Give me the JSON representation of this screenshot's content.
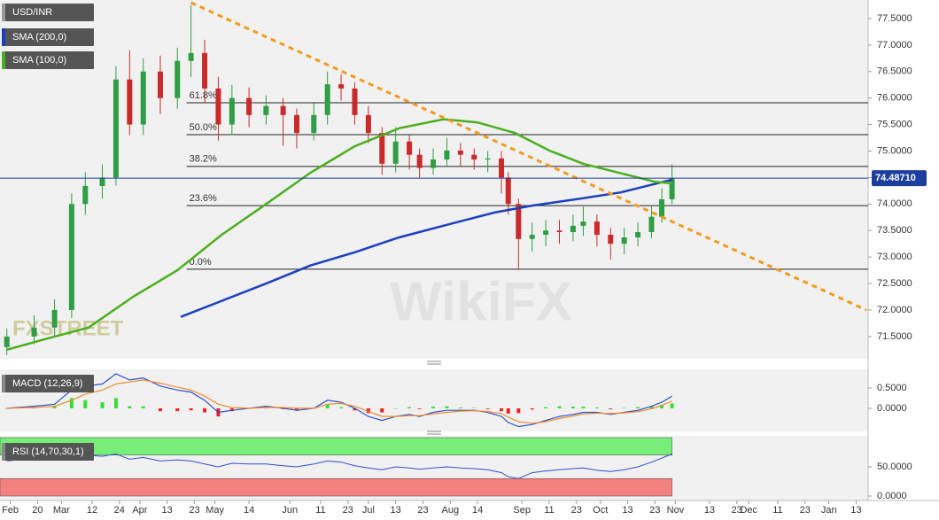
{
  "chart_data": [
    {
      "type": "candlestick",
      "title": "USD/INR",
      "title_color": "#9a9a9a",
      "up_color": "#2f9e44",
      "down_color": "#c92a2a",
      "xlim": [
        -2,
        252.5
      ],
      "ylim": [
        71.08,
        77.85
      ],
      "xticks": [
        {
          "value": 1,
          "label": "Feb"
        },
        {
          "value": 9,
          "label": "20"
        },
        {
          "value": 16,
          "label": "Mar"
        },
        {
          "value": 25,
          "label": "12"
        },
        {
          "value": 33,
          "label": "24"
        },
        {
          "value": 39,
          "label": "Apr"
        },
        {
          "value": 47,
          "label": "13"
        },
        {
          "value": 55,
          "label": "23"
        },
        {
          "value": 61,
          "label": "May"
        },
        {
          "value": 71,
          "label": "14"
        },
        {
          "value": 83,
          "label": "Jun"
        },
        {
          "value": 92,
          "label": "11"
        },
        {
          "value": 100,
          "label": "23"
        },
        {
          "value": 106,
          "label": "Jul"
        },
        {
          "value": 114,
          "label": "13"
        },
        {
          "value": 122,
          "label": "23"
        },
        {
          "value": 130,
          "label": "Aug"
        },
        {
          "value": 138,
          "label": "14"
        },
        {
          "value": 151,
          "label": "Sep"
        },
        {
          "value": 159,
          "label": "11"
        },
        {
          "value": 167,
          "label": "23"
        },
        {
          "value": 174,
          "label": "Oct"
        },
        {
          "value": 182,
          "label": "13"
        },
        {
          "value": 190,
          "label": "23"
        },
        {
          "value": 196,
          "label": "Nov"
        },
        {
          "value": 206,
          "label": "13"
        },
        {
          "value": 214,
          "label": "23"
        },
        {
          "value": 217.5,
          "label": "Dec"
        },
        {
          "value": 226,
          "label": "11"
        },
        {
          "value": 234,
          "label": "23"
        },
        {
          "value": 241,
          "label": "Jan"
        },
        {
          "value": 249,
          "label": "13"
        }
      ],
      "yticks": [
        {
          "value": 71.5,
          "label": "71.5000"
        },
        {
          "value": 72.0,
          "label": "72.0000"
        },
        {
          "value": 72.5,
          "label": "72.5000"
        },
        {
          "value": 73.0,
          "label": "73.0000"
        },
        {
          "value": 73.5,
          "label": "73.5000"
        },
        {
          "value": 74.0,
          "label": "74.0000"
        },
        {
          "value": 74.5,
          "label": "74.5000"
        },
        {
          "value": 75.0,
          "label": "75.0000"
        },
        {
          "value": 75.5,
          "label": "75.5000"
        },
        {
          "value": 76.0,
          "label": "76.0000"
        },
        {
          "value": 76.5,
          "label": "76.5000"
        },
        {
          "value": 77.0,
          "label": "77.0000"
        },
        {
          "value": 77.5,
          "label": "77.5000"
        }
      ],
      "candles": [
        {
          "x": 0,
          "open": 71.3,
          "high": 71.65,
          "low": 71.15,
          "close": 71.5
        },
        {
          "x": 8,
          "open": 71.5,
          "high": 71.9,
          "low": 71.35,
          "close": 71.67
        },
        {
          "x": 14,
          "open": 71.67,
          "high": 72.2,
          "low": 71.5,
          "close": 72.0
        },
        {
          "x": 19,
          "open": 72.0,
          "high": 74.2,
          "low": 71.85,
          "close": 74.0
        },
        {
          "x": 23,
          "open": 74.0,
          "high": 74.6,
          "low": 73.8,
          "close": 74.34
        },
        {
          "x": 28,
          "open": 74.34,
          "high": 74.75,
          "low": 74.1,
          "close": 74.5
        },
        {
          "x": 32,
          "open": 74.5,
          "high": 76.6,
          "low": 74.35,
          "close": 76.35
        },
        {
          "x": 36,
          "open": 76.35,
          "high": 76.9,
          "low": 75.3,
          "close": 75.5
        },
        {
          "x": 40,
          "open": 75.5,
          "high": 76.75,
          "low": 75.3,
          "close": 76.5
        },
        {
          "x": 45,
          "open": 76.5,
          "high": 76.8,
          "low": 75.7,
          "close": 76.0
        },
        {
          "x": 50,
          "open": 76.0,
          "high": 76.95,
          "low": 75.8,
          "close": 76.7
        },
        {
          "x": 54,
          "open": 76.7,
          "high": 77.75,
          "low": 76.4,
          "close": 76.85
        },
        {
          "x": 58,
          "open": 76.85,
          "high": 77.1,
          "low": 75.9,
          "close": 76.18
        },
        {
          "x": 62,
          "open": 76.18,
          "high": 76.4,
          "low": 75.2,
          "close": 75.5
        },
        {
          "x": 66,
          "open": 75.5,
          "high": 76.25,
          "low": 75.3,
          "close": 76.0
        },
        {
          "x": 71,
          "open": 76.0,
          "high": 76.2,
          "low": 75.45,
          "close": 75.68
        },
        {
          "x": 76,
          "open": 75.68,
          "high": 76.05,
          "low": 75.5,
          "close": 75.85
        },
        {
          "x": 81,
          "open": 75.85,
          "high": 76.0,
          "low": 75.1,
          "close": 75.68
        },
        {
          "x": 85,
          "open": 75.68,
          "high": 75.8,
          "low": 75.05,
          "close": 75.34
        },
        {
          "x": 90,
          "open": 75.34,
          "high": 75.9,
          "low": 75.2,
          "close": 75.68
        },
        {
          "x": 94,
          "open": 75.68,
          "high": 76.5,
          "low": 75.5,
          "close": 76.26
        },
        {
          "x": 98,
          "open": 76.26,
          "high": 76.45,
          "low": 75.95,
          "close": 76.18
        },
        {
          "x": 102,
          "open": 76.18,
          "high": 76.3,
          "low": 75.5,
          "close": 75.68
        },
        {
          "x": 106,
          "open": 75.68,
          "high": 75.85,
          "low": 75.15,
          "close": 75.34
        },
        {
          "x": 110,
          "open": 75.34,
          "high": 75.45,
          "low": 74.55,
          "close": 74.76
        },
        {
          "x": 114,
          "open": 74.76,
          "high": 75.45,
          "low": 74.6,
          "close": 75.18
        },
        {
          "x": 118,
          "open": 75.18,
          "high": 75.3,
          "low": 74.65,
          "close": 74.93
        },
        {
          "x": 121,
          "open": 74.93,
          "high": 75.05,
          "low": 74.5,
          "close": 74.68
        },
        {
          "x": 125,
          "open": 74.68,
          "high": 75.05,
          "low": 74.55,
          "close": 74.84
        },
        {
          "x": 129,
          "open": 74.84,
          "high": 75.25,
          "low": 74.7,
          "close": 75.01
        },
        {
          "x": 133,
          "open": 75.01,
          "high": 75.15,
          "low": 74.7,
          "close": 74.93
        },
        {
          "x": 137,
          "open": 74.93,
          "high": 75.05,
          "low": 74.65,
          "close": 74.84
        },
        {
          "x": 141,
          "open": 74.84,
          "high": 75.0,
          "low": 74.6,
          "close": 74.86
        },
        {
          "x": 145,
          "open": 74.86,
          "high": 75.0,
          "low": 74.2,
          "close": 74.5
        },
        {
          "x": 147,
          "open": 74.5,
          "high": 74.6,
          "low": 73.8,
          "close": 74.0
        },
        {
          "x": 150,
          "open": 74.0,
          "high": 74.1,
          "low": 72.77,
          "close": 73.34
        },
        {
          "x": 154,
          "open": 73.34,
          "high": 73.65,
          "low": 73.1,
          "close": 73.42
        },
        {
          "x": 158,
          "open": 73.42,
          "high": 73.7,
          "low": 73.2,
          "close": 73.5
        },
        {
          "x": 162,
          "open": 73.5,
          "high": 73.7,
          "low": 73.25,
          "close": 73.47
        },
        {
          "x": 166,
          "open": 73.47,
          "high": 73.8,
          "low": 73.3,
          "close": 73.59
        },
        {
          "x": 169,
          "open": 73.59,
          "high": 73.95,
          "low": 73.4,
          "close": 73.67
        },
        {
          "x": 173,
          "open": 73.67,
          "high": 73.8,
          "low": 73.2,
          "close": 73.42
        },
        {
          "x": 177,
          "open": 73.42,
          "high": 73.55,
          "low": 72.95,
          "close": 73.25
        },
        {
          "x": 181,
          "open": 73.25,
          "high": 73.55,
          "low": 73.05,
          "close": 73.37
        },
        {
          "x": 185,
          "open": 73.37,
          "high": 73.65,
          "low": 73.2,
          "close": 73.47
        },
        {
          "x": 189,
          "open": 73.47,
          "high": 73.95,
          "low": 73.35,
          "close": 73.76
        },
        {
          "x": 192,
          "open": 73.76,
          "high": 74.3,
          "low": 73.65,
          "close": 74.09
        },
        {
          "x": 195,
          "open": 74.09,
          "high": 74.75,
          "low": 74.0,
          "close": 74.49
        }
      ],
      "series": [
        {
          "name": "SMA (200,0)",
          "color": "#1c3fbf",
          "x": [
            51,
            76,
            89,
            102,
            115,
            128,
            143,
            154,
            167,
            180,
            195
          ],
          "values": [
            71.87,
            72.5,
            72.84,
            73.09,
            73.37,
            73.59,
            73.84,
            73.97,
            74.09,
            74.22,
            74.46
          ]
        },
        {
          "name": "SMA (100,0)",
          "color": "#4caf1e",
          "x": [
            0,
            14,
            24,
            37,
            50,
            63,
            76,
            89,
            102,
            115,
            128,
            138,
            149,
            159,
            169,
            180,
            190,
            195
          ],
          "values": [
            71.25,
            71.5,
            71.67,
            72.25,
            72.75,
            73.42,
            74.0,
            74.59,
            75.09,
            75.43,
            75.6,
            75.54,
            75.34,
            75.01,
            74.76,
            74.58,
            74.42,
            74.39
          ]
        }
      ],
      "trendline": {
        "color": "#f39a1e",
        "x": [
          54,
          252
        ],
        "values": [
          77.8,
          72.0
        ]
      },
      "fib_levels": [
        {
          "label": "61.8%",
          "value": 75.91
        },
        {
          "label": "50.0%",
          "value": 75.31
        },
        {
          "label": "38.2%",
          "value": 74.71
        },
        {
          "label": "23.6%",
          "value": 73.97
        },
        {
          "label": "0.0%",
          "value": 72.77
        }
      ],
      "last_price": {
        "value": 74.4871,
        "label": "74.48710",
        "color": "#1c3f9f"
      },
      "watermarks": [
        "WikiFX",
        "FXSTREET"
      ]
    },
    {
      "type": "macd",
      "title": "MACD (12,26,9)",
      "x": [
        0,
        8,
        14,
        19,
        23,
        28,
        32,
        36,
        40,
        45,
        50,
        54,
        58,
        62,
        66,
        71,
        76,
        81,
        85,
        90,
        94,
        98,
        102,
        106,
        110,
        114,
        118,
        121,
        125,
        129,
        133,
        137,
        141,
        145,
        147,
        150,
        154,
        158,
        162,
        166,
        169,
        173,
        177,
        181,
        185,
        189,
        192,
        195
      ],
      "ylim": [
        -0.57,
        0.96
      ],
      "yticks": [
        {
          "value": 0.5,
          "label": "0.5000"
        },
        {
          "value": 0,
          "label": "0.0000"
        }
      ],
      "macd": {
        "color": "#2f4fd0",
        "values": [
          0.0,
          0.05,
          0.1,
          0.45,
          0.55,
          0.6,
          0.85,
          0.7,
          0.75,
          0.55,
          0.45,
          0.4,
          0.2,
          -0.1,
          -0.05,
          0.0,
          0.05,
          0.0,
          -0.05,
          0.0,
          0.2,
          0.15,
          0.0,
          -0.2,
          -0.3,
          -0.2,
          -0.15,
          -0.2,
          -0.1,
          -0.05,
          -0.05,
          -0.05,
          -0.1,
          -0.2,
          -0.35,
          -0.45,
          -0.4,
          -0.3,
          -0.2,
          -0.15,
          -0.1,
          -0.1,
          -0.15,
          -0.1,
          -0.05,
          0.05,
          0.15,
          0.3
        ]
      },
      "signal": {
        "color": "#f08a2a",
        "values": [
          0.0,
          0.02,
          0.05,
          0.2,
          0.35,
          0.45,
          0.6,
          0.65,
          0.7,
          0.62,
          0.52,
          0.45,
          0.3,
          0.1,
          0.02,
          0.0,
          0.02,
          0.02,
          0.0,
          0.0,
          0.1,
          0.12,
          0.05,
          -0.08,
          -0.2,
          -0.2,
          -0.18,
          -0.18,
          -0.14,
          -0.1,
          -0.07,
          -0.06,
          -0.08,
          -0.13,
          -0.22,
          -0.33,
          -0.37,
          -0.33,
          -0.25,
          -0.19,
          -0.14,
          -0.12,
          -0.13,
          -0.11,
          -0.08,
          -0.01,
          0.07,
          0.18
        ]
      },
      "histogram": {
        "up_color": "#33dd33",
        "down_color": "#ee2222",
        "values": [
          0,
          0.03,
          0.05,
          0.25,
          0.2,
          0.15,
          0.25,
          0.05,
          0.05,
          -0.07,
          -0.07,
          -0.05,
          -0.1,
          -0.2,
          -0.07,
          0,
          0.03,
          -0.02,
          -0.05,
          0,
          0.1,
          0.03,
          -0.05,
          -0.12,
          -0.1,
          0,
          0.03,
          -0.02,
          0.04,
          0.05,
          0.02,
          0.01,
          -0.02,
          -0.07,
          -0.13,
          -0.12,
          -0.03,
          0.03,
          0.05,
          0.04,
          0.04,
          0.02,
          -0.02,
          0.01,
          0.03,
          0.06,
          0.08,
          0.12
        ]
      }
    },
    {
      "type": "rsi",
      "title": "RSI (14,70,30,1)",
      "color": "#2f4fd0",
      "x": [
        0,
        8,
        14,
        19,
        23,
        28,
        32,
        36,
        40,
        45,
        50,
        54,
        58,
        62,
        66,
        71,
        76,
        81,
        85,
        90,
        94,
        98,
        102,
        106,
        110,
        114,
        118,
        121,
        125,
        129,
        133,
        137,
        141,
        145,
        147,
        150,
        154,
        158,
        162,
        166,
        169,
        173,
        177,
        181,
        185,
        189,
        192,
        195
      ],
      "values": [
        60,
        65,
        70,
        72,
        70,
        68,
        72,
        63,
        66,
        60,
        62,
        60,
        55,
        50,
        56,
        55,
        55,
        52,
        50,
        55,
        60,
        58,
        52,
        48,
        45,
        50,
        48,
        46,
        48,
        50,
        48,
        47,
        45,
        40,
        33,
        30,
        40,
        43,
        45,
        47,
        48,
        44,
        42,
        45,
        50,
        58,
        65,
        72
      ],
      "ylim": [
        -7.6,
        103
      ],
      "yticks": [
        {
          "value": 50,
          "label": "50.0000"
        },
        {
          "value": 0,
          "label": "0.0000"
        }
      ],
      "upper_band": [
        70,
        100
      ],
      "upper_color": "#77ee77",
      "lower_band": [
        0,
        30
      ],
      "lower_color": "#f58080"
    }
  ]
}
